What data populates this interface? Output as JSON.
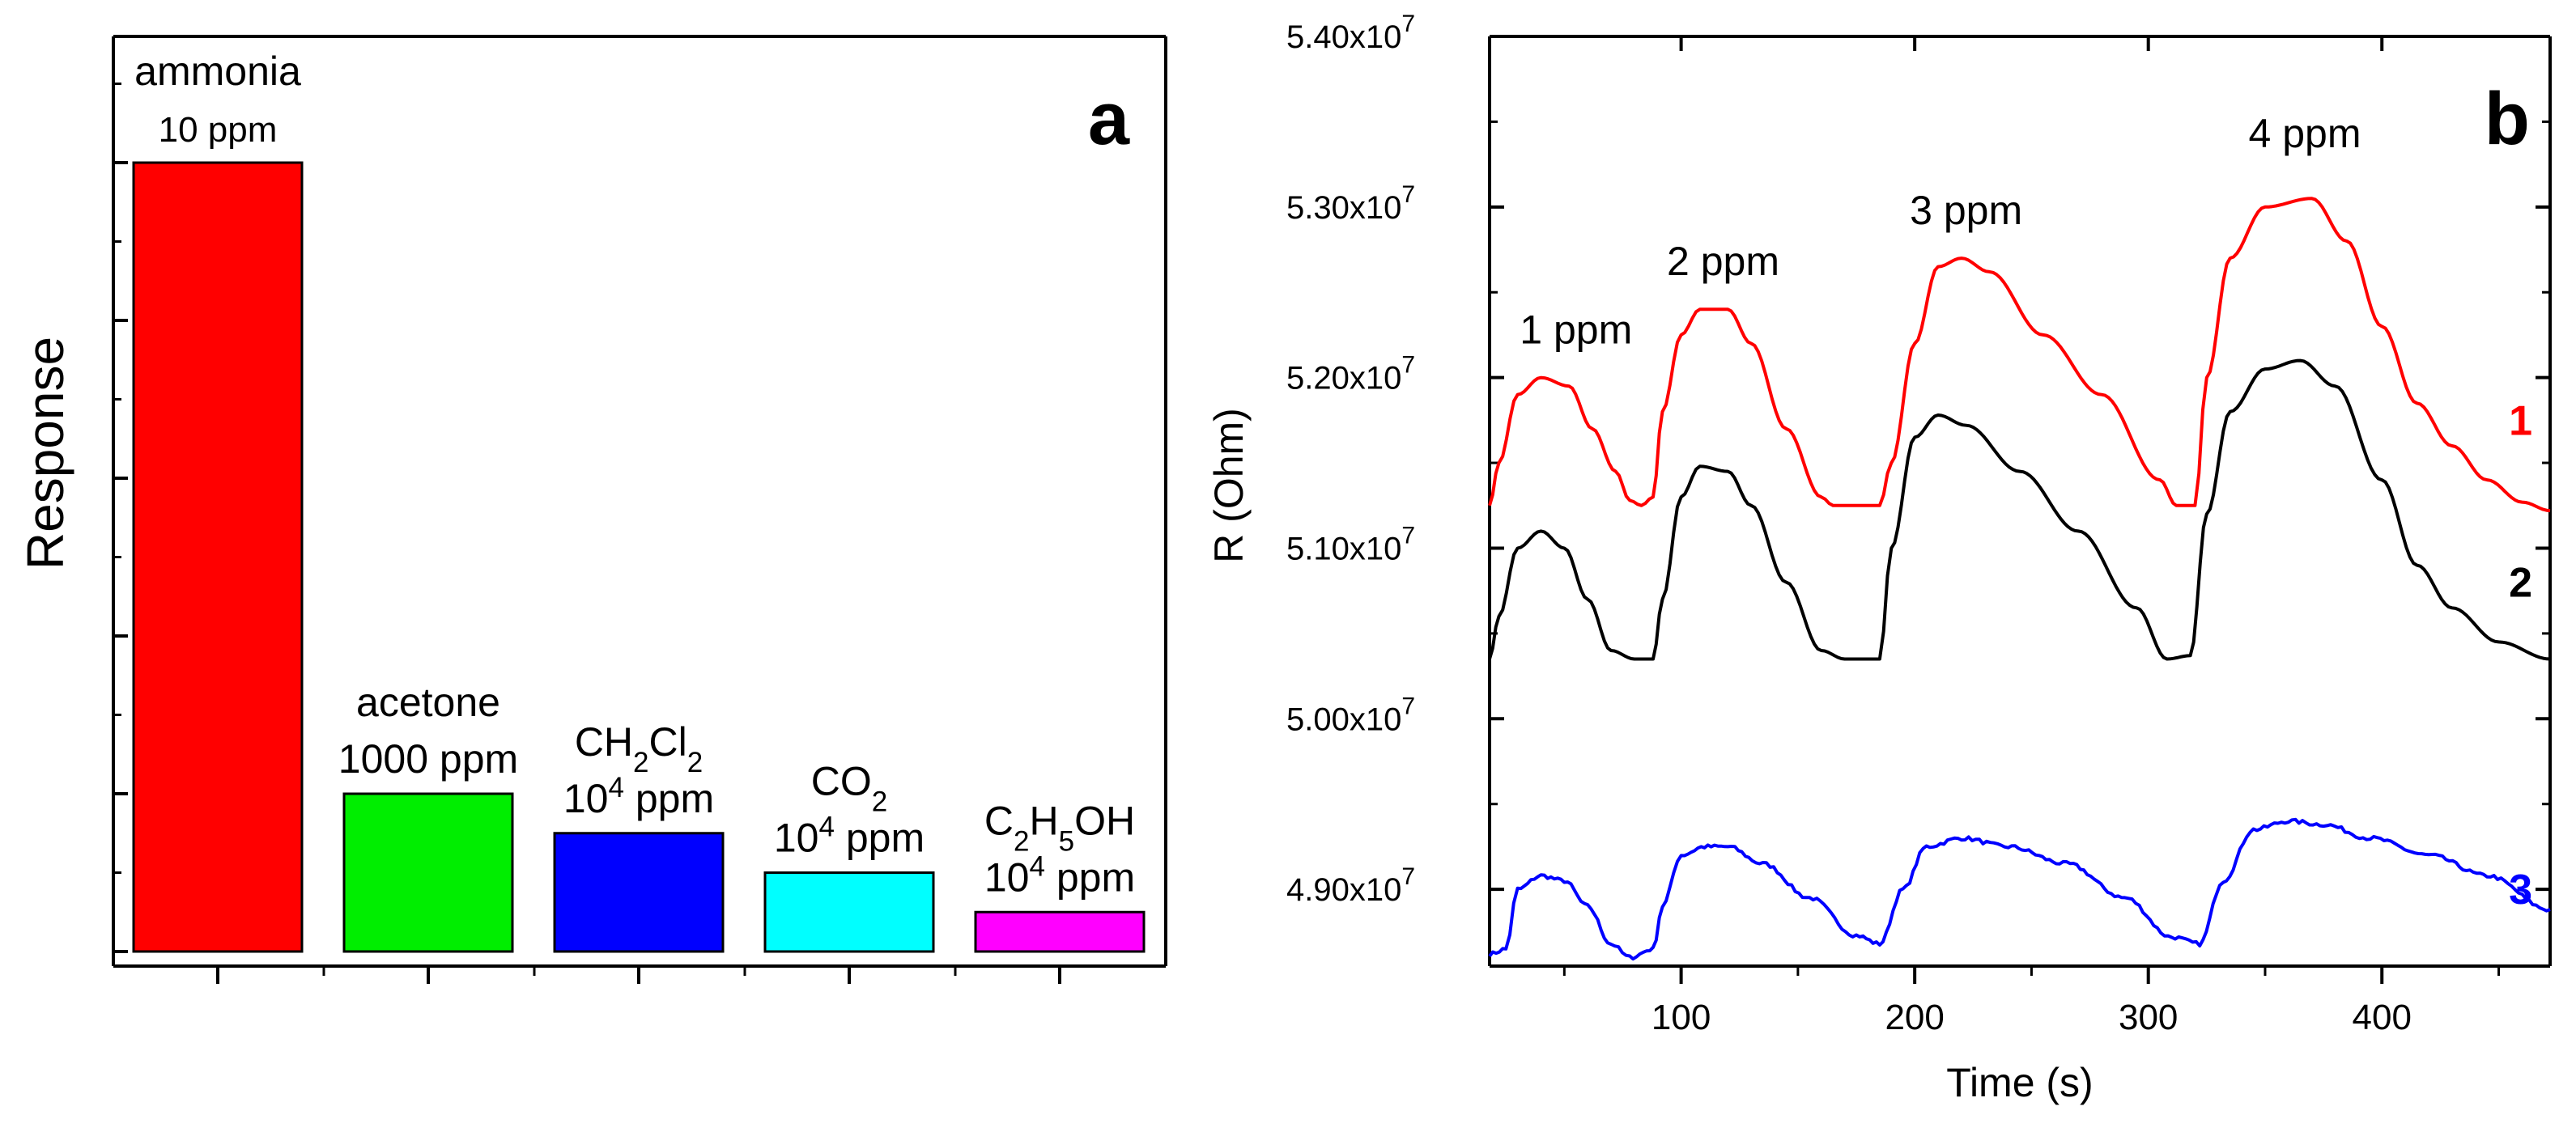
{
  "chart_data": [
    {
      "type": "bar",
      "panel": "a",
      "ylabel": "Response",
      "xlabel": "",
      "ylim": [
        0,
        58
      ],
      "categories": [
        {
          "gas": "ammonia",
          "gas_parts": [
            {
              "t": "ammonia"
            }
          ],
          "conc": "10 ppm",
          "conc_parts": [
            {
              "t": "10 ppm"
            }
          ],
          "value": 50,
          "color": "#ff0000"
        },
        {
          "gas": "acetone",
          "gas_parts": [
            {
              "t": "acetone"
            }
          ],
          "conc": "1000 ppm",
          "conc_parts": [
            {
              "t": "1000 ppm"
            }
          ],
          "value": 10,
          "color": "#00ee00"
        },
        {
          "gas": "CH2Cl2",
          "gas_parts": [
            {
              "t": "CH"
            },
            {
              "t": "2",
              "sub": true
            },
            {
              "t": "Cl"
            },
            {
              "t": "2",
              "sub": true
            }
          ],
          "conc": "10^4 ppm",
          "conc_parts": [
            {
              "t": "10"
            },
            {
              "t": "4",
              "sup": true
            },
            {
              "t": " ppm"
            }
          ],
          "value": 7.5,
          "color": "#0000ff"
        },
        {
          "gas": "CO2",
          "gas_parts": [
            {
              "t": "CO"
            },
            {
              "t": "2",
              "sub": true
            }
          ],
          "conc": "10^4 ppm",
          "conc_parts": [
            {
              "t": "10"
            },
            {
              "t": "4",
              "sup": true
            },
            {
              "t": " ppm"
            }
          ],
          "value": 5,
          "color": "#00ffff"
        },
        {
          "gas": "C2H5OH",
          "gas_parts": [
            {
              "t": "C"
            },
            {
              "t": "2",
              "sub": true
            },
            {
              "t": "H"
            },
            {
              "t": "5",
              "sub": true
            },
            {
              "t": "OH"
            }
          ],
          "conc": "10^4 ppm",
          "conc_parts": [
            {
              "t": "10"
            },
            {
              "t": "4",
              "sup": true
            },
            {
              "t": " ppm"
            }
          ],
          "value": 2.5,
          "color": "#ff00ff"
        }
      ]
    },
    {
      "type": "line",
      "panel": "b",
      "xlabel": "Time (s)",
      "ylabel": "R (Ohm)",
      "xlim": [
        18,
        472
      ],
      "ylim": [
        4.855,
        5.4
      ],
      "xticks": [
        100,
        200,
        300,
        400
      ],
      "yticks": [
        {
          "value": 4.9,
          "mantissa": "4.90x10",
          "exp": "7"
        },
        {
          "value": 5.0,
          "mantissa": "5.00x10",
          "exp": "7"
        },
        {
          "value": 5.1,
          "mantissa": "5.10x10",
          "exp": "7"
        },
        {
          "value": 5.2,
          "mantissa": "5.20x10",
          "exp": "7"
        },
        {
          "value": 5.3,
          "mantissa": "5.30x10",
          "exp": "7"
        },
        {
          "value": 5.4,
          "mantissa": "5.40x10",
          "exp": "7"
        }
      ],
      "y_unit_multiplier": "x10^7",
      "annotations": [
        {
          "text": "1 ppm",
          "x": 55,
          "y": 5.22
        },
        {
          "text": "2 ppm",
          "x": 118,
          "y": 5.26
        },
        {
          "text": "3 ppm",
          "x": 222,
          "y": 5.29
        },
        {
          "text": "4 ppm",
          "x": 367,
          "y": 5.335
        }
      ],
      "series": [
        {
          "name": "1",
          "color": "#ff0000",
          "noise": 0,
          "points": [
            [
              18,
              5.125
            ],
            [
              22,
              5.15
            ],
            [
              30,
              5.19
            ],
            [
              40,
              5.2
            ],
            [
              52,
              5.195
            ],
            [
              62,
              5.17
            ],
            [
              72,
              5.145
            ],
            [
              78,
              5.128
            ],
            [
              83,
              5.125
            ],
            [
              88,
              5.13
            ],
            [
              92,
              5.18
            ],
            [
              100,
              5.225
            ],
            [
              108,
              5.24
            ],
            [
              120,
              5.24
            ],
            [
              130,
              5.22
            ],
            [
              145,
              5.17
            ],
            [
              160,
              5.13
            ],
            [
              165,
              5.125
            ],
            [
              185,
              5.125
            ],
            [
              190,
              5.15
            ],
            [
              200,
              5.22
            ],
            [
              210,
              5.265
            ],
            [
              220,
              5.27
            ],
            [
              232,
              5.262
            ],
            [
              255,
              5.225
            ],
            [
              280,
              5.19
            ],
            [
              305,
              5.14
            ],
            [
              312,
              5.125
            ],
            [
              320,
              5.125
            ],
            [
              325,
              5.2
            ],
            [
              335,
              5.27
            ],
            [
              350,
              5.3
            ],
            [
              370,
              5.305
            ],
            [
              385,
              5.28
            ],
            [
              400,
              5.23
            ],
            [
              415,
              5.185
            ],
            [
              430,
              5.16
            ],
            [
              445,
              5.14
            ],
            [
              460,
              5.127
            ],
            [
              472,
              5.122
            ]
          ]
        },
        {
          "name": "2",
          "color": "#000000",
          "noise": 0,
          "points": [
            [
              18,
              5.035
            ],
            [
              22,
              5.06
            ],
            [
              30,
              5.1
            ],
            [
              40,
              5.11
            ],
            [
              50,
              5.1
            ],
            [
              60,
              5.07
            ],
            [
              70,
              5.04
            ],
            [
              80,
              5.035
            ],
            [
              88,
              5.035
            ],
            [
              92,
              5.07
            ],
            [
              100,
              5.13
            ],
            [
              108,
              5.148
            ],
            [
              120,
              5.145
            ],
            [
              130,
              5.125
            ],
            [
              145,
              5.08
            ],
            [
              160,
              5.04
            ],
            [
              170,
              5.035
            ],
            [
              185,
              5.035
            ],
            [
              190,
              5.1
            ],
            [
              200,
              5.165
            ],
            [
              210,
              5.178
            ],
            [
              222,
              5.172
            ],
            [
              245,
              5.145
            ],
            [
              270,
              5.11
            ],
            [
              295,
              5.065
            ],
            [
              308,
              5.035
            ],
            [
              318,
              5.037
            ],
            [
              325,
              5.12
            ],
            [
              335,
              5.18
            ],
            [
              350,
              5.205
            ],
            [
              365,
              5.21
            ],
            [
              380,
              5.195
            ],
            [
              400,
              5.14
            ],
            [
              415,
              5.09
            ],
            [
              430,
              5.065
            ],
            [
              450,
              5.045
            ],
            [
              472,
              5.035
            ]
          ]
        },
        {
          "name": "3",
          "color": "#0000ff",
          "noise": 0.0012,
          "points": [
            [
              18,
              4.862
            ],
            [
              25,
              4.865
            ],
            [
              30,
              4.9
            ],
            [
              40,
              4.908
            ],
            [
              50,
              4.905
            ],
            [
              60,
              4.89
            ],
            [
              70,
              4.868
            ],
            [
              78,
              4.86
            ],
            [
              88,
              4.865
            ],
            [
              92,
              4.89
            ],
            [
              100,
              4.92
            ],
            [
              110,
              4.925
            ],
            [
              120,
              4.925
            ],
            [
              135,
              4.915
            ],
            [
              155,
              4.895
            ],
            [
              175,
              4.873
            ],
            [
              185,
              4.868
            ],
            [
              195,
              4.9
            ],
            [
              205,
              4.925
            ],
            [
              220,
              4.93
            ],
            [
              240,
              4.925
            ],
            [
              265,
              4.915
            ],
            [
              290,
              4.895
            ],
            [
              310,
              4.872
            ],
            [
              322,
              4.868
            ],
            [
              332,
              4.905
            ],
            [
              345,
              4.935
            ],
            [
              360,
              4.94
            ],
            [
              375,
              4.938
            ],
            [
              395,
              4.93
            ],
            [
              420,
              4.92
            ],
            [
              445,
              4.908
            ],
            [
              472,
              4.888
            ]
          ]
        }
      ]
    }
  ]
}
